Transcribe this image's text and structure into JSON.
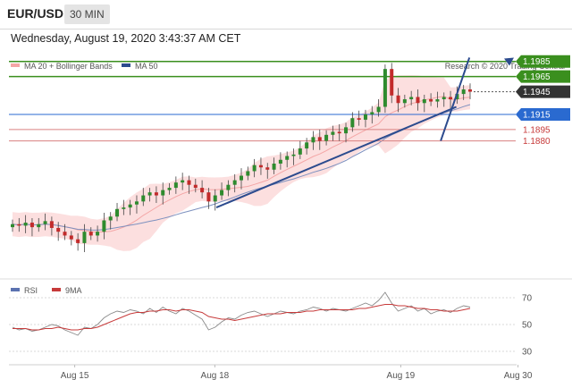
{
  "header": {
    "pair": "EUR/USD",
    "timeframe": "30 MIN",
    "datetime": "Wednesday, August 19, 2020 3:43:37 AM CET"
  },
  "colors": {
    "bollinger": "#f4a6a6",
    "ma50": "#2c4b8e",
    "green": "#3a8f1e",
    "blue": "#2a6ad0",
    "red": "#c73a3a",
    "dark": "#333333",
    "candle_green": "#2e8b2e",
    "candle_red": "#c22b2b"
  },
  "chart_data": [
    {
      "type": "candlestick",
      "legend": [
        {
          "name": "MA 20 + Bollinger Bands",
          "color": "#f4a6a6"
        },
        {
          "name": "MA 50",
          "color": "#2c4b8e"
        }
      ],
      "watermark": "Research © 2020 Trading Central",
      "ylim": [
        1.17,
        1.2
      ],
      "price_levels": [
        {
          "value": 1.1985,
          "label": "1.1985",
          "style": "green"
        },
        {
          "value": 1.1965,
          "label": "1.1965",
          "style": "green"
        },
        {
          "value": 1.1945,
          "label": "1.1945",
          "style": "current"
        },
        {
          "value": 1.1915,
          "label": "1.1915",
          "style": "blue"
        },
        {
          "value": 1.1895,
          "label": "1.1895",
          "style": "red"
        },
        {
          "value": 1.188,
          "label": "1.1880",
          "style": "red"
        }
      ],
      "closes": [
        1.177,
        1.1768,
        1.1772,
        1.1766,
        1.177,
        1.1774,
        1.1765,
        1.176,
        1.1755,
        1.175,
        1.1745,
        1.176,
        1.1755,
        1.176,
        1.1775,
        1.178,
        1.179,
        1.1792,
        1.1796,
        1.18,
        1.1808,
        1.1812,
        1.1808,
        1.1815,
        1.1818,
        1.1825,
        1.1828,
        1.1822,
        1.1818,
        1.1812,
        1.18,
        1.1808,
        1.1815,
        1.1822,
        1.1828,
        1.1834,
        1.184,
        1.1848,
        1.1845,
        1.1842,
        1.185,
        1.1855,
        1.186,
        1.1862,
        1.187,
        1.1878,
        1.1885,
        1.188,
        1.1888,
        1.1892,
        1.189,
        1.1898,
        1.191,
        1.1908,
        1.1915,
        1.1918,
        1.1925,
        1.1975,
        1.194,
        1.193,
        1.1935,
        1.1938,
        1.193,
        1.1935,
        1.1932,
        1.1935,
        1.1938,
        1.1935,
        1.1942,
        1.1948,
        1.1945
      ],
      "trendlines": [
        {
          "from": [
            0.0845,
            1.1792
          ],
          "to": [
            0.7275,
            1.1925
          ]
        },
        {
          "from": [
            0.083,
            1.188
          ],
          "to": [
            0.105,
            1.199
          ]
        }
      ],
      "x_ticks": [
        {
          "pos": 0.115,
          "label": "Aug 15"
        },
        {
          "pos": 0.36,
          "label": "Aug 18"
        },
        {
          "pos": 0.685,
          "label": "Aug 19"
        },
        {
          "pos": 0.89,
          "label": "Aug 30"
        }
      ]
    },
    {
      "type": "line",
      "legend": [
        {
          "name": "RSI",
          "color": "#5b72b0"
        },
        {
          "name": "9MA",
          "color": "#c73a3a"
        }
      ],
      "ylim": [
        20,
        80
      ],
      "y_ticks": [
        70,
        50,
        30
      ],
      "rsi": [
        48,
        46,
        47,
        45,
        46,
        48,
        50,
        49,
        46,
        44,
        42,
        48,
        47,
        50,
        55,
        58,
        60,
        59,
        61,
        60,
        58,
        62,
        59,
        63,
        60,
        58,
        62,
        60,
        57,
        54,
        46,
        48,
        52,
        55,
        54,
        57,
        59,
        60,
        58,
        56,
        58,
        60,
        59,
        58,
        60,
        61,
        63,
        62,
        60,
        62,
        61,
        60,
        62,
        64,
        66,
        64,
        68,
        74,
        66,
        60,
        62,
        64,
        60,
        62,
        58,
        60,
        61,
        59,
        62,
        64,
        63
      ],
      "ma9": [
        47,
        47,
        47,
        46,
        46,
        47,
        47,
        48,
        47,
        46,
        46,
        47,
        47,
        48,
        50,
        52,
        54,
        56,
        58,
        59,
        59,
        60,
        60,
        61,
        61,
        60,
        61,
        61,
        60,
        59,
        56,
        55,
        54,
        54,
        53,
        54,
        55,
        56,
        57,
        58,
        58,
        58,
        59,
        59,
        59,
        60,
        60,
        61,
        61,
        61,
        61,
        61,
        61,
        62,
        62,
        63,
        64,
        65,
        65,
        64,
        64,
        63,
        62,
        62,
        61,
        61,
        60,
        60,
        60,
        61,
        62
      ]
    }
  ]
}
